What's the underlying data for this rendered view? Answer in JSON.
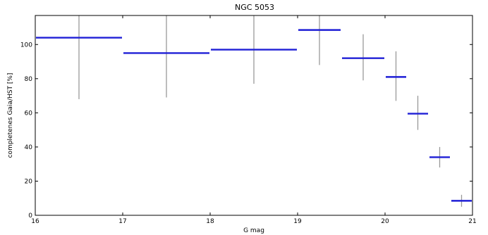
{
  "chart_data": {
    "type": "scatter",
    "title": "NGC 5053",
    "xlabel": "G mag",
    "ylabel": "completenes Gaia/HST [%]",
    "xlim": [
      16,
      21
    ],
    "ylim": [
      0,
      117
    ],
    "xticks": [
      "16",
      "17",
      "18",
      "19",
      "20",
      "21"
    ],
    "yticks": [
      "0",
      "20",
      "40",
      "60",
      "80",
      "100"
    ],
    "grid": false,
    "series": [
      {
        "points": [
          {
            "x_min": 16.0,
            "x_max": 17.0,
            "x": 16.5,
            "y": 104,
            "err_low": 68,
            "err_high": 117
          },
          {
            "x_min": 17.0,
            "x_max": 18.0,
            "x": 17.5,
            "y": 95,
            "err_low": 69,
            "err_high": 117
          },
          {
            "x_min": 18.0,
            "x_max": 19.0,
            "x": 18.5,
            "y": 97,
            "err_low": 77,
            "err_high": 117
          },
          {
            "x_min": 19.0,
            "x_max": 19.5,
            "x": 19.25,
            "y": 108.5,
            "err_low": 88,
            "err_high": 117
          },
          {
            "x_min": 19.5,
            "x_max": 20.0,
            "x": 19.75,
            "y": 92,
            "err_low": 79,
            "err_high": 106
          },
          {
            "x_min": 20.0,
            "x_max": 20.25,
            "x": 20.125,
            "y": 81,
            "err_low": 67,
            "err_high": 96
          },
          {
            "x_min": 20.25,
            "x_max": 20.5,
            "x": 20.375,
            "y": 59.5,
            "err_low": 50,
            "err_high": 70
          },
          {
            "x_min": 20.5,
            "x_max": 20.75,
            "x": 20.625,
            "y": 34,
            "err_low": 28,
            "err_high": 40
          },
          {
            "x_min": 20.75,
            "x_max": 21.0,
            "x": 20.875,
            "y": 8.5,
            "err_low": 5,
            "err_high": 12
          }
        ]
      }
    ],
    "colors": {
      "bar": "#1f1fd6",
      "error": "#999999",
      "axis": "#000000"
    }
  }
}
